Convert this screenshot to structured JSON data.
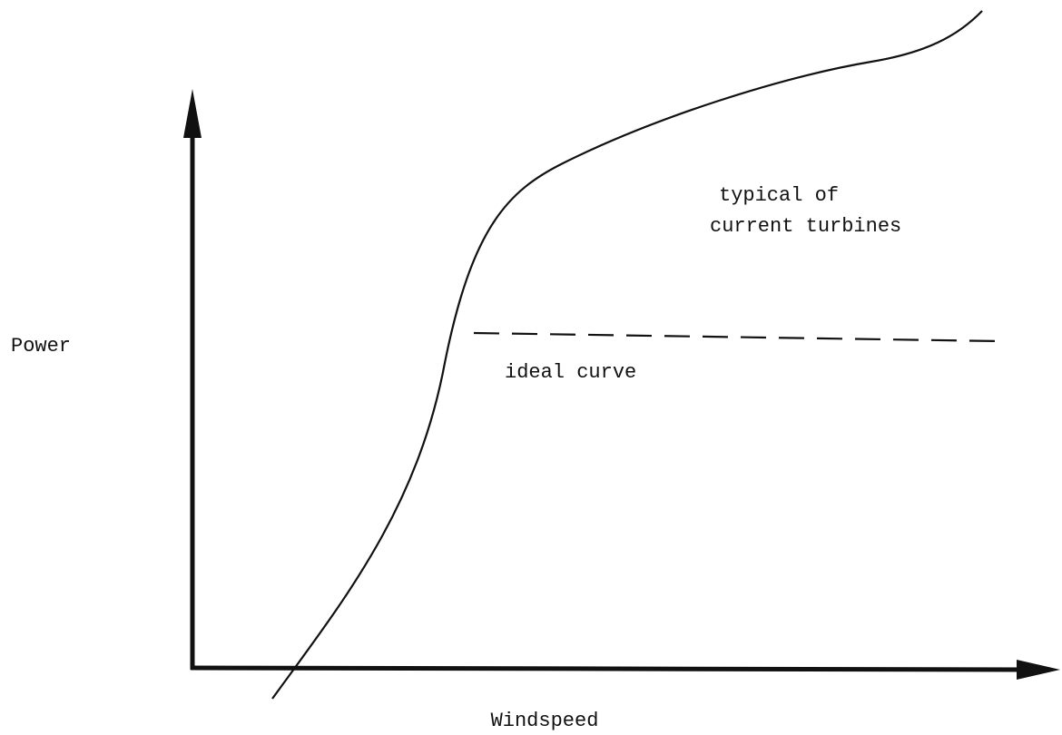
{
  "axes": {
    "y_label": "Power",
    "x_label": "Windspeed"
  },
  "curves": [
    {
      "label": [
        "typical of",
        "current turbines"
      ]
    },
    {
      "label": "ideal curve"
    }
  ]
}
